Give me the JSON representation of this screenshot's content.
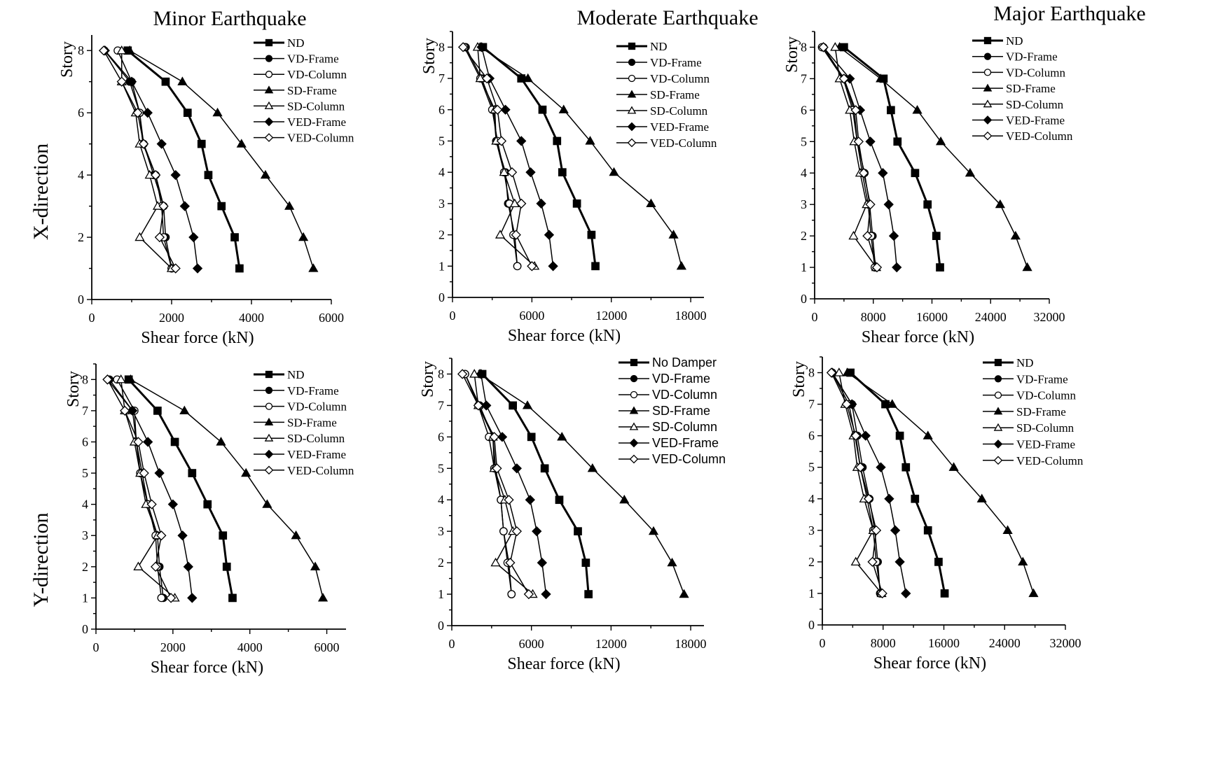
{
  "column_titles": [
    "Minor Earthquake",
    "Moderate Earthquake",
    "Major Earthquake"
  ],
  "row_labels": [
    "X-direction",
    "Y-direction"
  ],
  "colors": {
    "ink": "#000000",
    "background": "#ffffff"
  },
  "chart_data": [
    {
      "type": "line",
      "title": "Minor Earthquake",
      "direction": "X-direction",
      "xlabel": "Shear force (kN)",
      "ylabel": "Story",
      "xlim": [
        0,
        6000
      ],
      "ylim": [
        0,
        8.5
      ],
      "xticks": [
        0,
        2000,
        4000,
        6000
      ],
      "yticks": [
        0,
        2,
        4,
        6,
        8
      ],
      "grid": false,
      "legend_position": "top-right",
      "stories": [
        1,
        2,
        3,
        4,
        5,
        6,
        7,
        8
      ],
      "series": [
        {
          "name": "ND",
          "marker": "square-filled",
          "bold": true,
          "values": [
            3700,
            3580,
            3250,
            2920,
            2750,
            2400,
            1850,
            900
          ]
        },
        {
          "name": "VD-Frame",
          "marker": "circle-filled",
          "values": [
            2000,
            1850,
            1800,
            1550,
            1300,
            1200,
            950,
            320
          ]
        },
        {
          "name": "VD-Column",
          "marker": "circle-open",
          "values": [
            2000,
            1800,
            1750,
            1600,
            1280,
            1200,
            1000,
            650
          ]
        },
        {
          "name": "SD-Frame",
          "marker": "triangle-filled",
          "values": [
            5550,
            5300,
            4950,
            4350,
            3750,
            3150,
            2270,
            950
          ]
        },
        {
          "name": "SD-Column",
          "marker": "triangle-open",
          "values": [
            2000,
            1200,
            1650,
            1450,
            1200,
            1100,
            750,
            750
          ]
        },
        {
          "name": "VED-Frame",
          "marker": "diamond-filled",
          "values": [
            2650,
            2550,
            2330,
            2100,
            1750,
            1400,
            1000,
            330
          ]
        },
        {
          "name": "VED-Column",
          "marker": "diamond-open",
          "values": [
            2100,
            1700,
            1800,
            1600,
            1300,
            1150,
            750,
            300
          ]
        }
      ]
    },
    {
      "type": "line",
      "title": "Moderate Earthquake",
      "direction": "X-direction",
      "xlabel": "Shear force (kN)",
      "ylabel": "Story",
      "xlim": [
        0,
        19000
      ],
      "ylim": [
        0,
        8.5
      ],
      "xticks": [
        0,
        6000,
        12000,
        18000
      ],
      "yticks": [
        0,
        1,
        2,
        3,
        4,
        5,
        6,
        7,
        8
      ],
      "grid": false,
      "legend_position": "top-right",
      "stories": [
        1,
        2,
        3,
        4,
        5,
        6,
        7,
        8
      ],
      "series": [
        {
          "name": "ND",
          "marker": "square-filled",
          "bold": true,
          "values": [
            10800,
            10500,
            9400,
            8300,
            7900,
            6800,
            5200,
            2300
          ]
        },
        {
          "name": "VD-Frame",
          "marker": "circle-filled",
          "values": [
            4900,
            4700,
            4200,
            4000,
            3300,
            3100,
            2200,
            1000
          ]
        },
        {
          "name": "VD-Column",
          "marker": "circle-open",
          "values": [
            4900,
            4600,
            4300,
            3900,
            3400,
            3000,
            2100,
            900
          ]
        },
        {
          "name": "SD-Frame",
          "marker": "triangle-filled",
          "values": [
            17300,
            16700,
            15000,
            12200,
            10400,
            8400,
            5700,
            2100
          ]
        },
        {
          "name": "SD-Column",
          "marker": "triangle-open",
          "values": [
            6200,
            3600,
            4700,
            3900,
            3300,
            3200,
            2100,
            1900
          ]
        },
        {
          "name": "VED-Frame",
          "marker": "diamond-filled",
          "values": [
            7600,
            7300,
            6700,
            5900,
            5200,
            4000,
            2800,
            2200
          ]
        },
        {
          "name": "VED-Column",
          "marker": "diamond-open",
          "values": [
            6000,
            4800,
            5200,
            4500,
            3700,
            3400,
            2600,
            800
          ]
        }
      ]
    },
    {
      "type": "line",
      "title": "Major Earthquake",
      "direction": "X-direction",
      "xlabel": "Shear force (kN)",
      "ylabel": "Story",
      "xlim": [
        0,
        32000
      ],
      "ylim": [
        0,
        8.5
      ],
      "xticks": [
        0,
        8000,
        16000,
        24000,
        32000
      ],
      "yticks": [
        0,
        1,
        2,
        3,
        4,
        5,
        6,
        7,
        8
      ],
      "grid": false,
      "legend_position": "top-right",
      "stories": [
        1,
        2,
        3,
        4,
        5,
        6,
        7,
        8
      ],
      "series": [
        {
          "name": "ND",
          "marker": "square-filled",
          "bold": true,
          "values": [
            17100,
            16600,
            15400,
            13700,
            11300,
            10400,
            9400,
            4000
          ]
        },
        {
          "name": "VD-Frame",
          "marker": "circle-filled",
          "values": [
            8300,
            7900,
            7500,
            6800,
            5800,
            5400,
            4000,
            1200
          ]
        },
        {
          "name": "VD-Column",
          "marker": "circle-open",
          "values": [
            8200,
            7700,
            7300,
            6500,
            5800,
            5200,
            3900,
            1000
          ]
        },
        {
          "name": "SD-Frame",
          "marker": "triangle-filled",
          "values": [
            29000,
            27400,
            25300,
            21200,
            17200,
            14000,
            9000,
            3400
          ]
        },
        {
          "name": "SD-Column",
          "marker": "triangle-open",
          "values": [
            8400,
            5300,
            7100,
            6200,
            5400,
            4800,
            3400,
            2800
          ]
        },
        {
          "name": "VED-Frame",
          "marker": "diamond-filled",
          "values": [
            11200,
            10800,
            10100,
            9300,
            7600,
            6200,
            4800,
            1200
          ]
        },
        {
          "name": "VED-Column",
          "marker": "diamond-open",
          "values": [
            8500,
            7200,
            7600,
            6700,
            6000,
            5600,
            4000,
            1200
          ]
        }
      ]
    },
    {
      "type": "line",
      "title": "Minor Earthquake",
      "direction": "Y-direction",
      "xlabel": "Shear force (kN)",
      "ylabel": "Story",
      "xlim": [
        0,
        6500
      ],
      "ylim": [
        0,
        8.5
      ],
      "xticks": [
        0,
        2000,
        4000,
        6000
      ],
      "yticks": [
        0,
        1,
        2,
        3,
        4,
        5,
        6,
        7,
        8
      ],
      "grid": false,
      "legend_position": "top-right",
      "stories": [
        1,
        2,
        3,
        4,
        5,
        6,
        7,
        8
      ],
      "series": [
        {
          "name": "ND",
          "marker": "square-filled",
          "bold": true,
          "values": [
            3550,
            3400,
            3300,
            2900,
            2500,
            2050,
            1600,
            850
          ]
        },
        {
          "name": "VD-Frame",
          "marker": "circle-filled",
          "values": [
            1750,
            1650,
            1600,
            1350,
            1200,
            1050,
            950,
            350
          ]
        },
        {
          "name": "VD-Column",
          "marker": "circle-open",
          "values": [
            1700,
            1600,
            1550,
            1350,
            1150,
            1050,
            1000,
            550
          ]
        },
        {
          "name": "SD-Frame",
          "marker": "triangle-filled",
          "values": [
            5900,
            5700,
            5200,
            4450,
            3900,
            3250,
            2300,
            900
          ]
        },
        {
          "name": "SD-Column",
          "marker": "triangle-open",
          "values": [
            2050,
            1100,
            1600,
            1300,
            1150,
            1000,
            750,
            650
          ]
        },
        {
          "name": "VED-Frame",
          "marker": "diamond-filled",
          "values": [
            2500,
            2400,
            2250,
            2000,
            1650,
            1350,
            950,
            300
          ]
        },
        {
          "name": "VED-Column",
          "marker": "diamond-open",
          "values": [
            1950,
            1550,
            1700,
            1450,
            1250,
            1100,
            750,
            300
          ]
        }
      ]
    },
    {
      "type": "line",
      "title": "Moderate Earthquake",
      "direction": "Y-direction",
      "xlabel": "Shear force (kN)",
      "ylabel": "Story",
      "xlim": [
        0,
        19000
      ],
      "ylim": [
        0,
        8.5
      ],
      "xticks": [
        0,
        6000,
        12000,
        18000
      ],
      "yticks": [
        0,
        1,
        2,
        3,
        4,
        5,
        6,
        7,
        8
      ],
      "grid": false,
      "legend_position": "top-right",
      "stories": [
        1,
        2,
        3,
        4,
        5,
        6,
        7,
        8
      ],
      "series": [
        {
          "name": "No Damper",
          "marker": "square-filled",
          "bold": true,
          "values": [
            10300,
            10100,
            9500,
            8100,
            7000,
            6000,
            4600,
            2300
          ]
        },
        {
          "name": "VD-Frame",
          "marker": "circle-filled",
          "values": [
            4500,
            4300,
            3900,
            3700,
            3300,
            3100,
            2100,
            1000
          ]
        },
        {
          "name": "VD-Column",
          "marker": "circle-open",
          "values": [
            4500,
            4200,
            3900,
            3700,
            3200,
            2800,
            2000,
            1000
          ]
        },
        {
          "name": "SD-Frame",
          "marker": "triangle-filled",
          "values": [
            17500,
            16600,
            15200,
            13000,
            10600,
            8300,
            5700,
            2100
          ]
        },
        {
          "name": "SD-Column",
          "marker": "triangle-open",
          "values": [
            6100,
            3300,
            4600,
            4000,
            3200,
            3100,
            2000,
            1700
          ]
        },
        {
          "name": "VED-Frame",
          "marker": "diamond-filled",
          "values": [
            7100,
            6800,
            6400,
            5900,
            4900,
            3800,
            2600,
            2200
          ]
        },
        {
          "name": "VED-Column",
          "marker": "diamond-open",
          "values": [
            5800,
            4400,
            4900,
            4300,
            3400,
            3200,
            2000,
            800
          ]
        }
      ]
    },
    {
      "type": "line",
      "title": "Major Earthquake",
      "direction": "Y-direction",
      "xlabel": "Shear force (kN)",
      "ylabel": "Story",
      "xlim": [
        0,
        32000
      ],
      "ylim": [
        0,
        8.5
      ],
      "xticks": [
        0,
        8000,
        16000,
        24000,
        32000
      ],
      "yticks": [
        0,
        1,
        2,
        3,
        4,
        5,
        6,
        7,
        8
      ],
      "grid": false,
      "legend_position": "top-right",
      "stories": [
        1,
        2,
        3,
        4,
        5,
        6,
        7,
        8
      ],
      "series": [
        {
          "name": "ND",
          "marker": "square-filled",
          "bold": true,
          "values": [
            16100,
            15300,
            13900,
            12200,
            11000,
            10200,
            8300,
            3700
          ]
        },
        {
          "name": "VD-Frame",
          "marker": "circle-filled",
          "values": [
            7600,
            7300,
            6900,
            6200,
            5300,
            4600,
            3900,
            1300
          ]
        },
        {
          "name": "VD-Column",
          "marker": "circle-open",
          "values": [
            7700,
            7100,
            6700,
            5900,
            5000,
            4300,
            3500,
            1300
          ]
        },
        {
          "name": "SD-Frame",
          "marker": "triangle-filled",
          "values": [
            27800,
            26400,
            24400,
            21000,
            17300,
            13900,
            9200,
            3300
          ]
        },
        {
          "name": "SD-Column",
          "marker": "triangle-open",
          "values": [
            7800,
            4400,
            6700,
            5500,
            4600,
            4100,
            3000,
            2200
          ]
        },
        {
          "name": "VED-Frame",
          "marker": "diamond-filled",
          "values": [
            11000,
            10200,
            9600,
            8800,
            7700,
            5700,
            3900,
            1300
          ]
        },
        {
          "name": "VED-Column",
          "marker": "diamond-open",
          "values": [
            7900,
            6600,
            7100,
            6100,
            5000,
            4400,
            3200,
            1200
          ]
        }
      ]
    }
  ]
}
